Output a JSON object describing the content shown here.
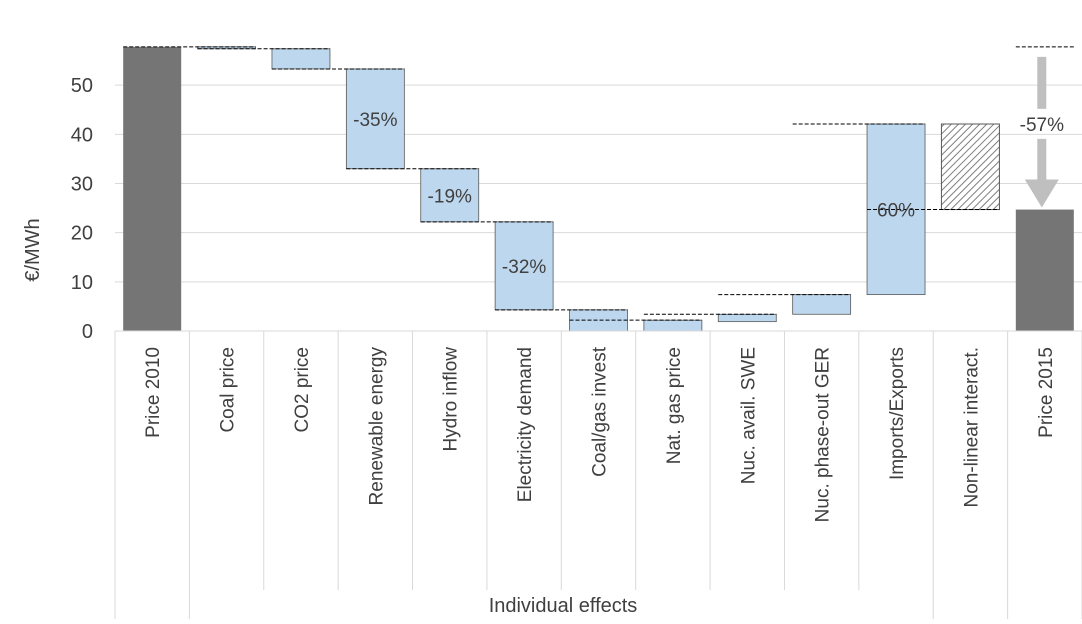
{
  "chart_data": {
    "type": "bar",
    "subtype": "waterfall",
    "ylabel": "€/MWh",
    "group_label": "Individual effects",
    "ylim": [
      0,
      60
    ],
    "yticks": [
      0,
      10,
      20,
      30,
      40,
      50
    ],
    "grid": "horizontal",
    "colors": {
      "total": "#757575",
      "effect": "#bdd7ee",
      "edge": "#595959",
      "arrow": "#bfbfbf",
      "hatch": "#7f7f7f"
    },
    "categories": [
      "Price 2010",
      "Coal price",
      "CO2 price",
      "Renewable energy",
      "Hydro inflow",
      "Electricity demand",
      "Coal/gas invest",
      "Nat. gas price",
      "Nuc. avail. SWE",
      "Nuc. phase-out GER",
      "Imports/Exports",
      "Non-linear interact.",
      "Price 2015"
    ],
    "bars": [
      {
        "kind": "total",
        "low": 0,
        "high": 57.8,
        "label": ""
      },
      {
        "kind": "effect",
        "low": 57.4,
        "high": 57.8,
        "label": ""
      },
      {
        "kind": "effect",
        "low": 53.3,
        "high": 57.4,
        "label": ""
      },
      {
        "kind": "effect",
        "low": 33.0,
        "high": 53.3,
        "label": "-35%"
      },
      {
        "kind": "effect",
        "low": 22.2,
        "high": 33.0,
        "label": "-19%"
      },
      {
        "kind": "effect",
        "low": 4.3,
        "high": 22.2,
        "label": "-32%"
      },
      {
        "kind": "effect",
        "low": 0,
        "high": 4.3,
        "label": ""
      },
      {
        "kind": "effect",
        "low": 0,
        "high": 2.2,
        "label": ""
      },
      {
        "kind": "effect",
        "low": 1.9,
        "high": 3.4,
        "label": ""
      },
      {
        "kind": "effect",
        "low": 3.4,
        "high": 7.4,
        "label": ""
      },
      {
        "kind": "effect",
        "low": 7.4,
        "high": 42.1,
        "label": "60%"
      },
      {
        "kind": "hatched",
        "low": 24.7,
        "high": 42.1,
        "label": ""
      },
      {
        "kind": "total",
        "low": 0,
        "high": 24.7,
        "label": ""
      }
    ],
    "connectors": [
      57.8,
      57.4,
      53.3,
      33.0,
      22.2,
      4.3,
      2.2,
      3.4,
      7.4,
      42.1,
      24.7
    ],
    "annotation": {
      "text": "-57%",
      "from": 57.8,
      "to": 24.7
    }
  }
}
